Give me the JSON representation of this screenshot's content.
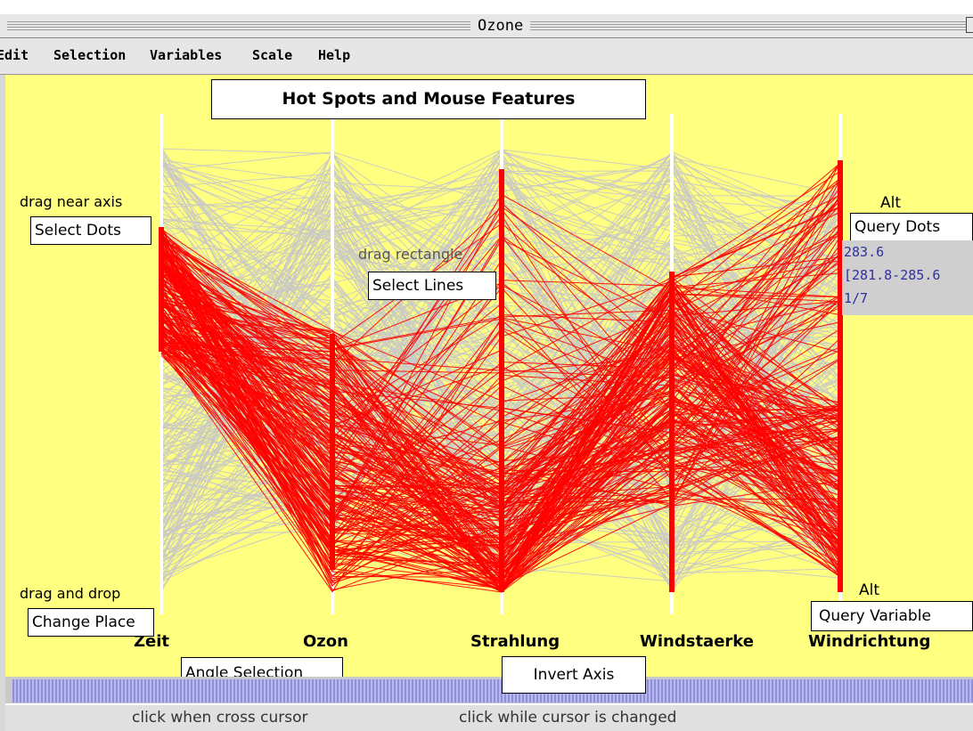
{
  "window": {
    "title": "Ozone"
  },
  "menubar": {
    "items": [
      "Edit",
      "Selection",
      "Variables",
      "Scale",
      "Help"
    ]
  },
  "plot": {
    "title": "Hot Spots and Mouse Features",
    "axes": [
      "Zeit",
      "Ozon",
      "Strahlung",
      "Windstaerke",
      "Windrichtung"
    ]
  },
  "annotations": {
    "select_dots": {
      "hint": "drag near axis",
      "button": "Select Dots"
    },
    "select_lines": {
      "hint": "drag rectangle",
      "button": "Select Lines"
    },
    "query_dots": {
      "hint": "Alt",
      "button": "Query Dots"
    },
    "query_readout": {
      "value": "283.6",
      "range": "[281.8-285.6",
      "count": "1/7"
    },
    "change_place": {
      "hint": "drag and drop",
      "button": "Change Place"
    },
    "query_variable": {
      "hint": "Alt",
      "button": "Query Variable"
    },
    "angle_selection": {
      "button": "Angle Selection"
    },
    "invert_axis": {
      "button": "Invert Axis"
    }
  },
  "statusbar": {
    "left": "click when cross cursor",
    "right": "click while cursor is changed"
  },
  "colors": {
    "background": "#ffff80",
    "selected": "#ff0000",
    "unselected": "#c8c8c8",
    "axis": "#ffffff"
  }
}
